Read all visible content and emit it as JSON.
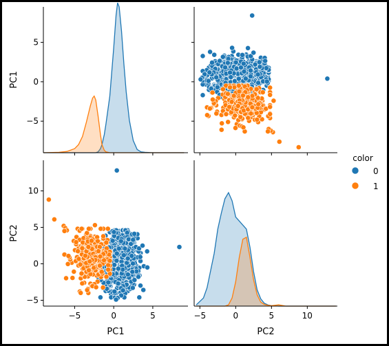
{
  "chart_data": {
    "type": "scatter",
    "subtype": "pairplot",
    "variables": [
      "PC1",
      "PC2"
    ],
    "hue": "color",
    "legend": {
      "title": "color",
      "placement": "right",
      "entries": [
        {
          "label": "0",
          "color": "#1f77b4"
        },
        {
          "label": "1",
          "color": "#ff7f0e"
        }
      ]
    },
    "grid": false,
    "axes": {
      "PC1": {
        "lim": [
          -9,
          9.5
        ],
        "ticks": [
          -5,
          0,
          5
        ],
        "tick_labels": [
          "−5",
          "0",
          "5"
        ]
      },
      "PC2": {
        "lim": [
          -5.8,
          14.2
        ],
        "ticks": [
          -5,
          0,
          5,
          10
        ],
        "tick_labels": [
          "−5",
          "0",
          "5",
          "10"
        ]
      }
    },
    "diag_kde": {
      "PC1": {
        "x": [
          -9,
          -7,
          -6,
          -5,
          -4.5,
          -4,
          -3.5,
          -3,
          -2.7,
          -2.5,
          -2.3,
          -2,
          -1.7,
          -1.5,
          -1.2,
          -1,
          -0.5,
          0,
          0.3,
          0.5,
          0.7,
          1,
          1.3,
          1.6,
          2,
          2.5,
          3,
          3.5,
          4,
          5,
          6,
          7,
          9
        ],
        "series": [
          {
            "name": "0",
            "y": [
              0,
              0,
              0,
              0,
              0,
              0,
              0,
              0,
              0,
              0,
              0,
              0.002,
              0.01,
              0.02,
              0.045,
              0.07,
              0.14,
              0.26,
              0.34,
              0.37,
              0.36,
              0.3,
              0.22,
              0.15,
              0.08,
              0.03,
              0.008,
              0.002,
              0.001,
              0,
              0,
              0,
              0
            ]
          },
          {
            "name": "1",
            "y": [
              0,
              0.001,
              0.003,
              0.01,
              0.02,
              0.04,
              0.075,
              0.115,
              0.135,
              0.14,
              0.13,
              0.09,
              0.045,
              0.02,
              0.006,
              0.002,
              0,
              0,
              0,
              0,
              0,
              0,
              0,
              0,
              0,
              0,
              0,
              0,
              0,
              0,
              0,
              0,
              0
            ]
          }
        ]
      },
      "PC2": {
        "x": [
          -5.5,
          -4.5,
          -4,
          -3,
          -2.5,
          -2,
          -1.5,
          -1,
          -0.5,
          0,
          0.5,
          1,
          1.5,
          2,
          2.5,
          3,
          3.5,
          4,
          4.5,
          5,
          6,
          7,
          8,
          10,
          12,
          14
        ],
        "series": [
          {
            "name": "0",
            "y": [
              0.003,
              0.02,
              0.045,
              0.13,
              0.19,
              0.23,
              0.265,
              0.28,
              0.26,
              0.22,
              0.21,
              0.2,
              0.19,
              0.145,
              0.085,
              0.04,
              0.018,
              0.007,
              0.003,
              0.001,
              0,
              0,
              0,
              0,
              0,
              0
            ]
          },
          {
            "name": "1",
            "y": [
              0,
              0,
              0,
              0,
              0,
              0,
              0,
              0.003,
              0.02,
              0.06,
              0.12,
              0.165,
              0.17,
              0.12,
              0.065,
              0.028,
              0.01,
              0.004,
              0.002,
              0.001,
              0.003,
              0,
              0,
              0,
              0,
              0
            ]
          }
        ]
      },
      "ylim": [
        0,
        0.36
      ]
    },
    "scatter_outliers": {
      "series0": [
        {
          "pc1": 8.4,
          "pc2": 2.3
        },
        {
          "pc1": 0.4,
          "pc2": 12.8
        },
        {
          "pc1": 2.3,
          "pc2": 1.1
        },
        {
          "pc1": 4.3,
          "pc2": -0.5
        },
        {
          "pc1": 0.5,
          "pc2": -4.7
        },
        {
          "pc1": 0.3,
          "pc2": -4.9
        }
      ],
      "series1": [
        {
          "pc1": -8.3,
          "pc2": 8.8
        },
        {
          "pc1": -7.6,
          "pc2": 6.1
        },
        {
          "pc1": -6.4,
          "pc2": 5.2
        },
        {
          "pc1": -6.2,
          "pc2": 4.9
        },
        {
          "pc1": -6.0,
          "pc2": 4.6
        },
        {
          "pc1": -6.3,
          "pc2": 4.5
        },
        {
          "pc1": -2.4,
          "pc2": 5.3
        },
        {
          "pc1": -3.4,
          "pc2": -3.6
        }
      ]
    },
    "scatter_clusters": {
      "note": "dense point clouds, described by center and spread in data units",
      "series0": {
        "count": 1000,
        "pc1_mean": 0.8,
        "pc1_sd": 1.1,
        "pc1_range": [
          -2.6,
          4.6
        ],
        "pc2_mean": 0.2,
        "pc2_sd": 1.9,
        "pc2_range": [
          -4.6,
          4.6
        ]
      },
      "series1": {
        "count": 300,
        "pc1_mean": -2.7,
        "pc1_sd": 1.2,
        "pc1_range": [
          -6.3,
          -0.5
        ],
        "pc2_mean": 1.0,
        "pc2_sd": 1.7,
        "pc2_range": [
          -4.0,
          4.8
        ]
      }
    }
  }
}
